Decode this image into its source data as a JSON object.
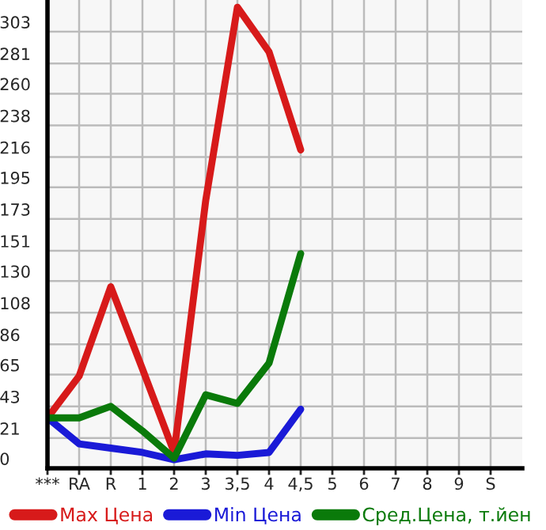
{
  "chart_data": {
    "type": "line",
    "categories": [
      "***",
      "RA",
      "R",
      "1",
      "2",
      "3",
      "3,5",
      "4",
      "4,5",
      "5",
      "6",
      "7",
      "8",
      "9",
      "S"
    ],
    "series": [
      {
        "name": "Max Цена",
        "color": "#d71a1a",
        "values": [
          35,
          64,
          126,
          69,
          11,
          186,
          320,
          289,
          221,
          null,
          null,
          null,
          null,
          null,
          null
        ]
      },
      {
        "name": "Min Цена",
        "color": "#1a1ad7",
        "values": [
          35,
          17,
          14,
          11,
          6,
          10,
          9,
          11,
          41,
          null,
          null,
          null,
          null,
          null,
          null
        ]
      },
      {
        "name": "Сред.Цена, т.йен",
        "color": "#0a7a0a",
        "values": [
          35,
          35,
          43,
          26,
          7,
          51,
          45,
          73,
          149,
          null,
          null,
          null,
          null,
          null,
          null
        ]
      }
    ],
    "ylim": [
      0,
      325
    ],
    "yticks": [
      0,
      21,
      43,
      65,
      86,
      108,
      130,
      151,
      173,
      195,
      216,
      238,
      260,
      281,
      303
    ],
    "grid": true,
    "legend": "bottom",
    "marker": "none",
    "line_style": "solid"
  }
}
